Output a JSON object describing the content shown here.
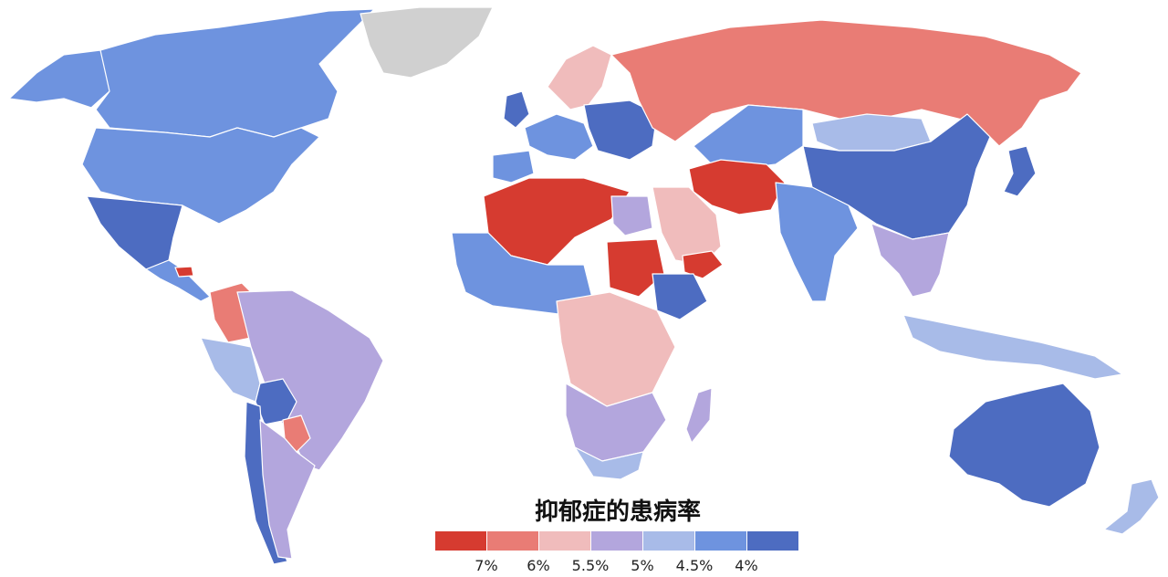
{
  "title": "抑郁症的患病率",
  "legend": {
    "bins": [
      {
        "color": "#d63b30"
      },
      {
        "color": "#e97c75"
      },
      {
        "color": "#f0bcbc"
      },
      {
        "color": "#b3a6dd"
      },
      {
        "color": "#a8bbe8"
      },
      {
        "color": "#6e93df"
      },
      {
        "color": "#4d6cc1"
      }
    ],
    "ticks": [
      "7%",
      "6%",
      "5.5%",
      "5%",
      "4.5%",
      "4%"
    ]
  },
  "colors": {
    "c7": "#d63b30",
    "c6": "#e97c75",
    "c55": "#f0bcbc",
    "c5": "#b3a6dd",
    "c45": "#a8bbe8",
    "c4": "#6e93df",
    "c35": "#4d6cc1",
    "nodata": "#d0d0d0"
  },
  "regions": [
    {
      "name": "canada",
      "cls": "c4"
    },
    {
      "name": "usa",
      "cls": "c4"
    },
    {
      "name": "alaska",
      "cls": "c4"
    },
    {
      "name": "greenland",
      "cls": "nodata"
    },
    {
      "name": "mexico",
      "cls": "c35"
    },
    {
      "name": "central-america",
      "cls": "c4"
    },
    {
      "name": "honduras",
      "cls": "c7"
    },
    {
      "name": "colombia",
      "cls": "c6"
    },
    {
      "name": "brazil",
      "cls": "c5"
    },
    {
      "name": "peru",
      "cls": "c45"
    },
    {
      "name": "bolivia",
      "cls": "c35"
    },
    {
      "name": "paraguay",
      "cls": "c6"
    },
    {
      "name": "argentina",
      "cls": "c5"
    },
    {
      "name": "chile",
      "cls": "c35"
    },
    {
      "name": "russia",
      "cls": "c6"
    },
    {
      "name": "scandinavia",
      "cls": "c55"
    },
    {
      "name": "uk",
      "cls": "c35"
    },
    {
      "name": "western-europe",
      "cls": "c4"
    },
    {
      "name": "eastern-europe",
      "cls": "c35"
    },
    {
      "name": "iberia",
      "cls": "c4"
    },
    {
      "name": "north-africa",
      "cls": "c7"
    },
    {
      "name": "egypt",
      "cls": "c5"
    },
    {
      "name": "west-africa",
      "cls": "c4"
    },
    {
      "name": "sudan",
      "cls": "c7"
    },
    {
      "name": "central-africa",
      "cls": "c55"
    },
    {
      "name": "ethiopia",
      "cls": "c35"
    },
    {
      "name": "southern-africa",
      "cls": "c5"
    },
    {
      "name": "south-africa",
      "cls": "c45"
    },
    {
      "name": "madagascar",
      "cls": "c5"
    },
    {
      "name": "arabia",
      "cls": "c55"
    },
    {
      "name": "iran",
      "cls": "c7"
    },
    {
      "name": "yemen",
      "cls": "c7"
    },
    {
      "name": "central-asia",
      "cls": "c4"
    },
    {
      "name": "india",
      "cls": "c4"
    },
    {
      "name": "china",
      "cls": "c35"
    },
    {
      "name": "mongolia",
      "cls": "c45"
    },
    {
      "name": "southeast-asia",
      "cls": "c5"
    },
    {
      "name": "indonesia",
      "cls": "c45"
    },
    {
      "name": "japan",
      "cls": "c35"
    },
    {
      "name": "australia",
      "cls": "c35"
    },
    {
      "name": "new-zealand",
      "cls": "c45"
    }
  ]
}
